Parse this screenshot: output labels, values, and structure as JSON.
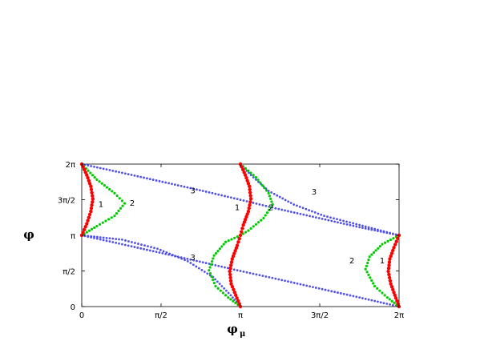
{
  "chart_data": {
    "type": "scatter",
    "title": "",
    "xlabel": "φ",
    "xlabel_subscript": "μ",
    "ylabel": "φ",
    "xlim": [
      0,
      6.2832
    ],
    "ylim": [
      0,
      6.2832
    ],
    "grid": false,
    "legend": "none",
    "x_ticks": [
      {
        "value": 0,
        "label": "0"
      },
      {
        "value": 1.5708,
        "label": "π/2"
      },
      {
        "value": 3.1416,
        "label": "π"
      },
      {
        "value": 4.7124,
        "label": "3π/2"
      },
      {
        "value": 6.2832,
        "label": "2π"
      }
    ],
    "y_ticks": [
      {
        "value": 0,
        "label": "0"
      },
      {
        "value": 1.5708,
        "label": "π/2"
      },
      {
        "value": 3.1416,
        "label": "π"
      },
      {
        "value": 4.7124,
        "label": "3π/2"
      },
      {
        "value": 6.2832,
        "label": "2π"
      }
    ],
    "series": [
      {
        "label": "1",
        "color": "#ff0000",
        "marker_size": 2.2,
        "points": [
          [
            0,
            6.283
          ],
          [
            0.1,
            5.8
          ],
          [
            0.18,
            5.3
          ],
          [
            0.22,
            4.75
          ],
          [
            0.18,
            4.2
          ],
          [
            0.1,
            3.65
          ],
          [
            0,
            3.142
          ],
          [
            3.142,
            6.283
          ],
          [
            3.24,
            5.8
          ],
          [
            3.32,
            5.3
          ],
          [
            3.35,
            4.75
          ],
          [
            3.3,
            4.2
          ],
          [
            3.2,
            3.6
          ],
          [
            3.142,
            3.142
          ],
          [
            3.08,
            2.7
          ],
          [
            2.98,
            2.1
          ],
          [
            2.93,
            1.55
          ],
          [
            2.96,
            1.0
          ],
          [
            3.05,
            0.5
          ],
          [
            3.142,
            0
          ],
          [
            6.283,
            3.142
          ],
          [
            6.18,
            2.6
          ],
          [
            6.1,
            2.1
          ],
          [
            6.07,
            1.55
          ],
          [
            6.12,
            1.0
          ],
          [
            6.2,
            0.5
          ],
          [
            6.283,
            0
          ]
        ]
      },
      {
        "label": "2",
        "color": "#00cc00",
        "marker_size": 1.6,
        "points": [
          [
            0,
            6.283
          ],
          [
            0.3,
            5.6
          ],
          [
            0.65,
            5.0
          ],
          [
            0.85,
            4.55
          ],
          [
            0.65,
            4.0
          ],
          [
            0.3,
            3.55
          ],
          [
            0,
            3.142
          ],
          [
            3.142,
            6.283
          ],
          [
            3.45,
            5.7
          ],
          [
            3.7,
            5.0
          ],
          [
            3.78,
            4.5
          ],
          [
            3.6,
            3.9
          ],
          [
            3.3,
            3.35
          ],
          [
            3.142,
            3.142
          ],
          [
            2.85,
            2.85
          ],
          [
            2.62,
            2.25
          ],
          [
            2.52,
            1.6
          ],
          [
            2.65,
            0.9
          ],
          [
            2.9,
            0.4
          ],
          [
            3.142,
            0
          ],
          [
            6.283,
            3.142
          ],
          [
            5.95,
            2.75
          ],
          [
            5.7,
            2.2
          ],
          [
            5.62,
            1.65
          ],
          [
            5.8,
            0.9
          ],
          [
            6.05,
            0.4
          ],
          [
            6.283,
            0
          ]
        ]
      },
      {
        "label": "3",
        "color": "#5050ee",
        "marker_size": 1.4,
        "points": [
          [
            0,
            6.283
          ],
          [
            0.8,
            5.9
          ],
          [
            1.6,
            5.5
          ],
          [
            2.4,
            5.1
          ],
          [
            3.142,
            4.71
          ],
          [
            3.9,
            4.3
          ],
          [
            4.7,
            3.9
          ],
          [
            5.5,
            3.5
          ],
          [
            6.283,
            3.142
          ],
          [
            0,
            3.142
          ],
          [
            0.8,
            2.75
          ],
          [
            1.6,
            2.35
          ],
          [
            2.4,
            1.95
          ],
          [
            3.142,
            1.57
          ],
          [
            3.9,
            1.2
          ],
          [
            4.7,
            0.8
          ],
          [
            5.5,
            0.4
          ],
          [
            6.283,
            0
          ],
          [
            0,
            3.142
          ],
          [
            0.8,
            2.95
          ],
          [
            1.5,
            2.55
          ],
          [
            2.1,
            2.0
          ],
          [
            2.6,
            1.3
          ],
          [
            2.95,
            0.5
          ],
          [
            3.142,
            0
          ],
          [
            3.142,
            6.283
          ],
          [
            3.35,
            5.8
          ],
          [
            3.7,
            5.1
          ],
          [
            4.2,
            4.5
          ],
          [
            4.8,
            4.0
          ],
          [
            5.5,
            3.6
          ],
          [
            6.283,
            3.142
          ]
        ]
      }
    ],
    "curve_labels": [
      {
        "text": "1",
        "x": 0.38,
        "y": 4.4
      },
      {
        "text": "2",
        "x": 1.0,
        "y": 4.45
      },
      {
        "text": "3",
        "x": 2.2,
        "y": 5.0
      },
      {
        "text": "3",
        "x": 2.2,
        "y": 2.05
      },
      {
        "text": "1",
        "x": 3.08,
        "y": 4.25
      },
      {
        "text": "2",
        "x": 3.75,
        "y": 4.25
      },
      {
        "text": "3",
        "x": 4.6,
        "y": 4.95
      },
      {
        "text": "2",
        "x": 5.35,
        "y": 1.9
      },
      {
        "text": "1",
        "x": 5.95,
        "y": 1.9
      }
    ]
  }
}
